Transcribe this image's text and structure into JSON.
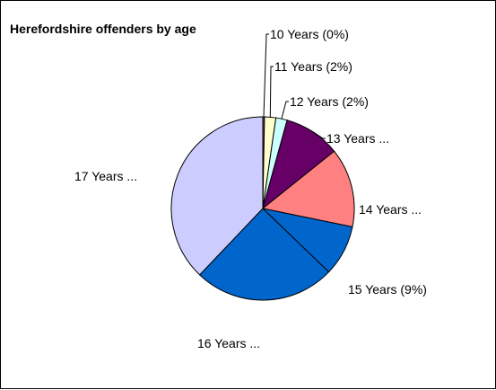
{
  "chart_data": {
    "type": "pie",
    "title": "Herefordshire offenders by age",
    "categories": [
      "10 Years",
      "11 Years",
      "12 Years",
      "13 Years",
      "14 Years",
      "15 Years",
      "16 Years",
      "17 Years"
    ],
    "values": [
      0.3,
      2,
      2,
      10,
      14,
      9,
      25,
      38
    ],
    "unit": "%",
    "slice_labels": [
      "10 Years (0%)",
      "11 Years (2%)",
      "12 Years (2%)",
      "13 Years ...",
      "14 Years ...",
      "15 Years (9%)",
      "16 Years ...",
      "17 Years ..."
    ],
    "colors": [
      "#993366",
      "#ffffcc",
      "#ccffff",
      "#660066",
      "#ff8080",
      "#0066cc",
      "#0066cc",
      "#ccccff"
    ],
    "legend": "none"
  }
}
